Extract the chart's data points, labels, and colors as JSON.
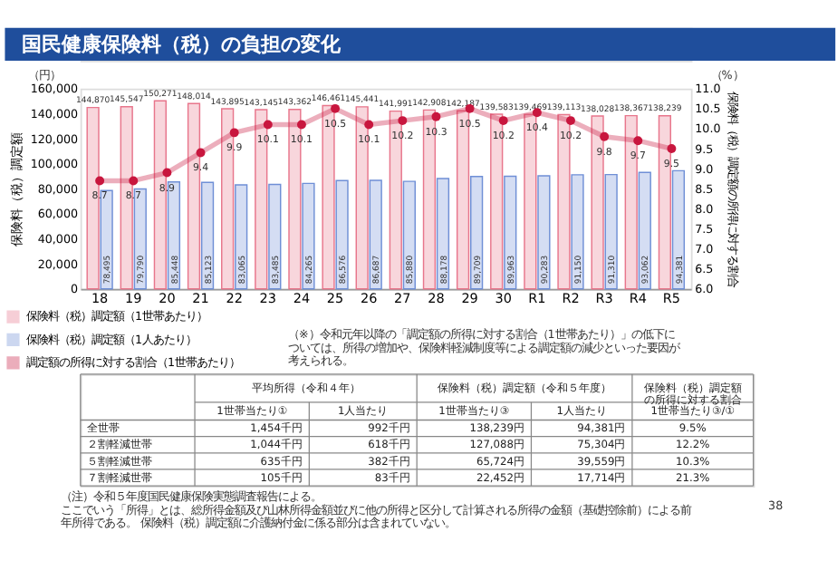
{
  "chart_data": [
    {
      "type": "bar",
      "title": "国民健康保険料（税）の負担の変化",
      "categories": [
        "18",
        "19",
        "20",
        "21",
        "22",
        "23",
        "24",
        "25",
        "26",
        "27",
        "28",
        "29",
        "30",
        "R1",
        "R2",
        "R3",
        "R4",
        "R5"
      ],
      "series": [
        {
          "name": "保険料（税）調定額（1世帯あたり）",
          "color": "#e8768c",
          "values": [
            144870,
            145547,
            150271,
            148014,
            143895,
            143145,
            143362,
            146461,
            145441,
            141991,
            142908,
            142187,
            139583,
            139469,
            139113,
            138028,
            138367,
            138239
          ],
          "value_labels": [
            "144,870",
            "145,547",
            "150,271",
            "148,014",
            "143,895",
            "143,145",
            "143,362",
            "146,461",
            "145,441",
            "141,991",
            "142,908",
            "142,187",
            "139,583",
            "139,469",
            "139,113",
            "138,028",
            "138,367",
            "138,239"
          ]
        },
        {
          "name": "保険料（税）調定額（1人あたり）",
          "color": "#6f8fd6",
          "values": [
            78495,
            79790,
            85448,
            85123,
            83065,
            83485,
            84265,
            86576,
            86687,
            85880,
            88178,
            89709,
            89963,
            90283,
            91150,
            91310,
            93062,
            94381
          ],
          "value_labels": [
            "78,495",
            "79,790",
            "85,448",
            "85,123",
            "83,065",
            "83,485",
            "84,265",
            "86,576",
            "86,687",
            "85,880",
            "88,178",
            "89,709",
            "89,963",
            "90,283",
            "91,150",
            "91,310",
            "93,062",
            "94,381"
          ]
        },
        {
          "name": "調定額の所得に対する割合（1世帯あたり）",
          "color": "#c8163e",
          "type": "line",
          "axis": "y2",
          "values": [
            8.7,
            8.7,
            8.9,
            9.4,
            9.9,
            10.1,
            10.1,
            10.5,
            10.1,
            10.2,
            10.3,
            10.5,
            10.2,
            10.4,
            10.2,
            9.8,
            9.7,
            9.5
          ],
          "value_labels": [
            "8.7",
            "8.7",
            "8.9",
            "9.4",
            "9.9",
            "10.1",
            "10.1",
            "10.5",
            "10.1",
            "10.2",
            "10.3",
            "10.5",
            "10.2",
            "10.4",
            "10.2",
            "9.8",
            "9.7",
            "9.5"
          ]
        }
      ],
      "ylim": [
        0,
        160000
      ],
      "yticks": [
        0,
        {
          "value": 20000,
          "label": "20,000"
        },
        {
          "value": 40000,
          "label": "40,000"
        },
        {
          "value": 60000,
          "label": "60,000"
        },
        {
          "value": 80000,
          "label": "80,000"
        },
        {
          "value": 100000,
          "label": "100,000"
        },
        {
          "value": 120000,
          "label": "120,000"
        },
        {
          "value": 140000,
          "label": "140,000"
        },
        {
          "value": 160000,
          "label": "160,000"
        }
      ],
      "y2lim": [
        6,
        11
      ],
      "y2ticks": [
        {
          "value": 6,
          "label": "6.0"
        },
        6.5,
        {
          "value": 7,
          "label": "7.0"
        },
        7.5,
        {
          "value": 8,
          "label": "8.0"
        },
        8.5,
        {
          "value": 9,
          "label": "9.0"
        },
        9.5,
        {
          "value": 10,
          "label": "10.0"
        },
        10.5,
        {
          "value": 11,
          "label": "11.0"
        }
      ],
      "ylabel": "保険料（税）調定額",
      "y2label": "保険料（税）調定額の所得に対する割合",
      "annotations": [
        "（円）",
        "（%）",
        "（※）令和元年以降の「調定額の所得に対する割合（1世帯あたり）」の低下については、所得の増加や、保険料軽減制度等による調定額の減少といった要因が考えられる。"
      ],
      "legend": "bottom left",
      "marker": "circle"
    },
    {
      "type": "other",
      "annotations": [
        "平均所得（令和４年）",
        "保険料（税）調定額（令和５年度）",
        "保険料（税）調定額の所得に対する割合",
        "1世帯当たり①",
        "1人当たり",
        "1世帯当たり③",
        "1人当たり",
        "1世帯当たり③/①",
        "全世帯",
        "1,454千円",
        "992千円",
        "138,239円",
        "94,381円",
        "9.5%",
        "２割軽減世帯",
        "1,044千円",
        "618千円",
        "127,088円",
        "75,304円",
        "12.2%",
        "５割軽減世帯",
        "635千円",
        "382千円",
        "65,724円",
        "39,559円",
        "10.3%",
        "７割軽減世帯",
        "105千円",
        "83千円",
        "22,452円",
        "17,714円",
        "21.3%",
        "（注）令和５年度国民健康保険実態調査報告による。",
        "ここでいう「所得」とは、総所得金額及び山林所得金額並びに他の所得と区分して計算される所得の金額（基礎控除前）による前年所得である。 保険料（税）調定額に介護納付金に係る部分は含まれていない。",
        "38"
      ]
    }
  ]
}
